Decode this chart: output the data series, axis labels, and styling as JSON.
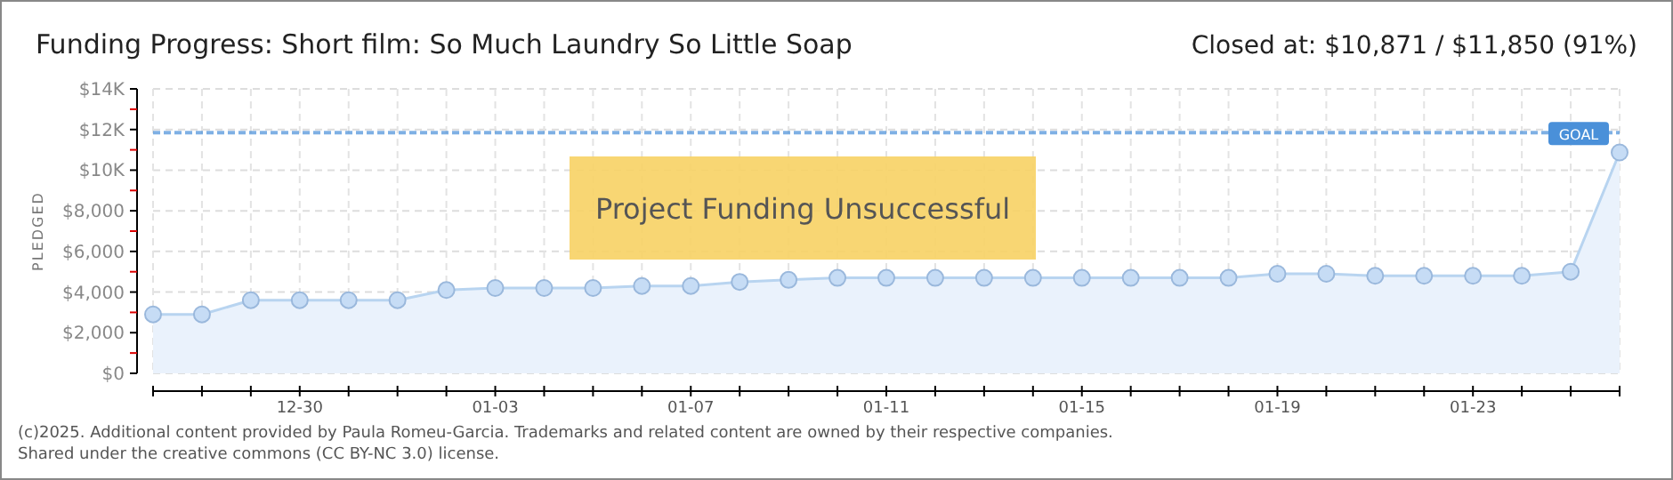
{
  "chart_data": {
    "type": "area",
    "title": "Funding Progress: Short film: So Much Laundry So Little Soap",
    "subtitle": "Closed at: $10,871 / $11,850 (91%)",
    "ylabel": "PLEDGED",
    "categories": [
      null,
      null,
      null,
      "12-30",
      null,
      null,
      null,
      "01-03",
      null,
      null,
      null,
      "01-07",
      null,
      null,
      null,
      "01-11",
      null,
      null,
      null,
      "01-15",
      null,
      null,
      null,
      "01-19",
      null,
      null,
      null,
      "01-23",
      null,
      null,
      null
    ],
    "series": [
      {
        "color": "#b8d4f0",
        "values": [
          2900,
          2900,
          3600,
          3600,
          3600,
          3600,
          4100,
          4200,
          4200,
          4200,
          4300,
          4300,
          4500,
          4600,
          4700,
          4700,
          4700,
          4700,
          4700,
          4700,
          4700,
          4700,
          4700,
          4900,
          4900,
          4800,
          4800,
          4800,
          4800,
          5000,
          10871
        ]
      }
    ],
    "ylim": [
      0,
      14000
    ],
    "yticks": [
      {
        "value": 0,
        "label": "$0"
      },
      {
        "value": 1000,
        "label": null
      },
      {
        "value": 2000,
        "label": "$2,000"
      },
      {
        "value": 3000,
        "label": null
      },
      {
        "value": 4000,
        "label": "$4,000"
      },
      {
        "value": 5000,
        "label": null
      },
      {
        "value": 6000,
        "label": "$6,000"
      },
      {
        "value": 7000,
        "label": null
      },
      {
        "value": 8000,
        "label": "$8,000"
      },
      {
        "value": 9000,
        "label": null
      },
      {
        "value": 10000,
        "label": "$10K"
      },
      {
        "value": 11000,
        "label": null
      },
      {
        "value": 12000,
        "label": "$12K"
      },
      {
        "value": 13000,
        "label": null
      },
      {
        "value": 14000,
        "label": "$14K"
      }
    ],
    "ref_lines": [
      {
        "axis": "y",
        "value": 11850,
        "label": "GOAL",
        "color": "#4a90d9",
        "line_style": "dashed"
      }
    ],
    "annotations": [
      "Project Funding Unsuccessful",
      "(c)2025. Additional content provided by Paula Romeu-Garcia. Trademarks and related content are owned by their respective companies.",
      "Shared under the creative commons (CC BY-NC 3.0) license."
    ],
    "grid": true,
    "marker": "circle"
  }
}
